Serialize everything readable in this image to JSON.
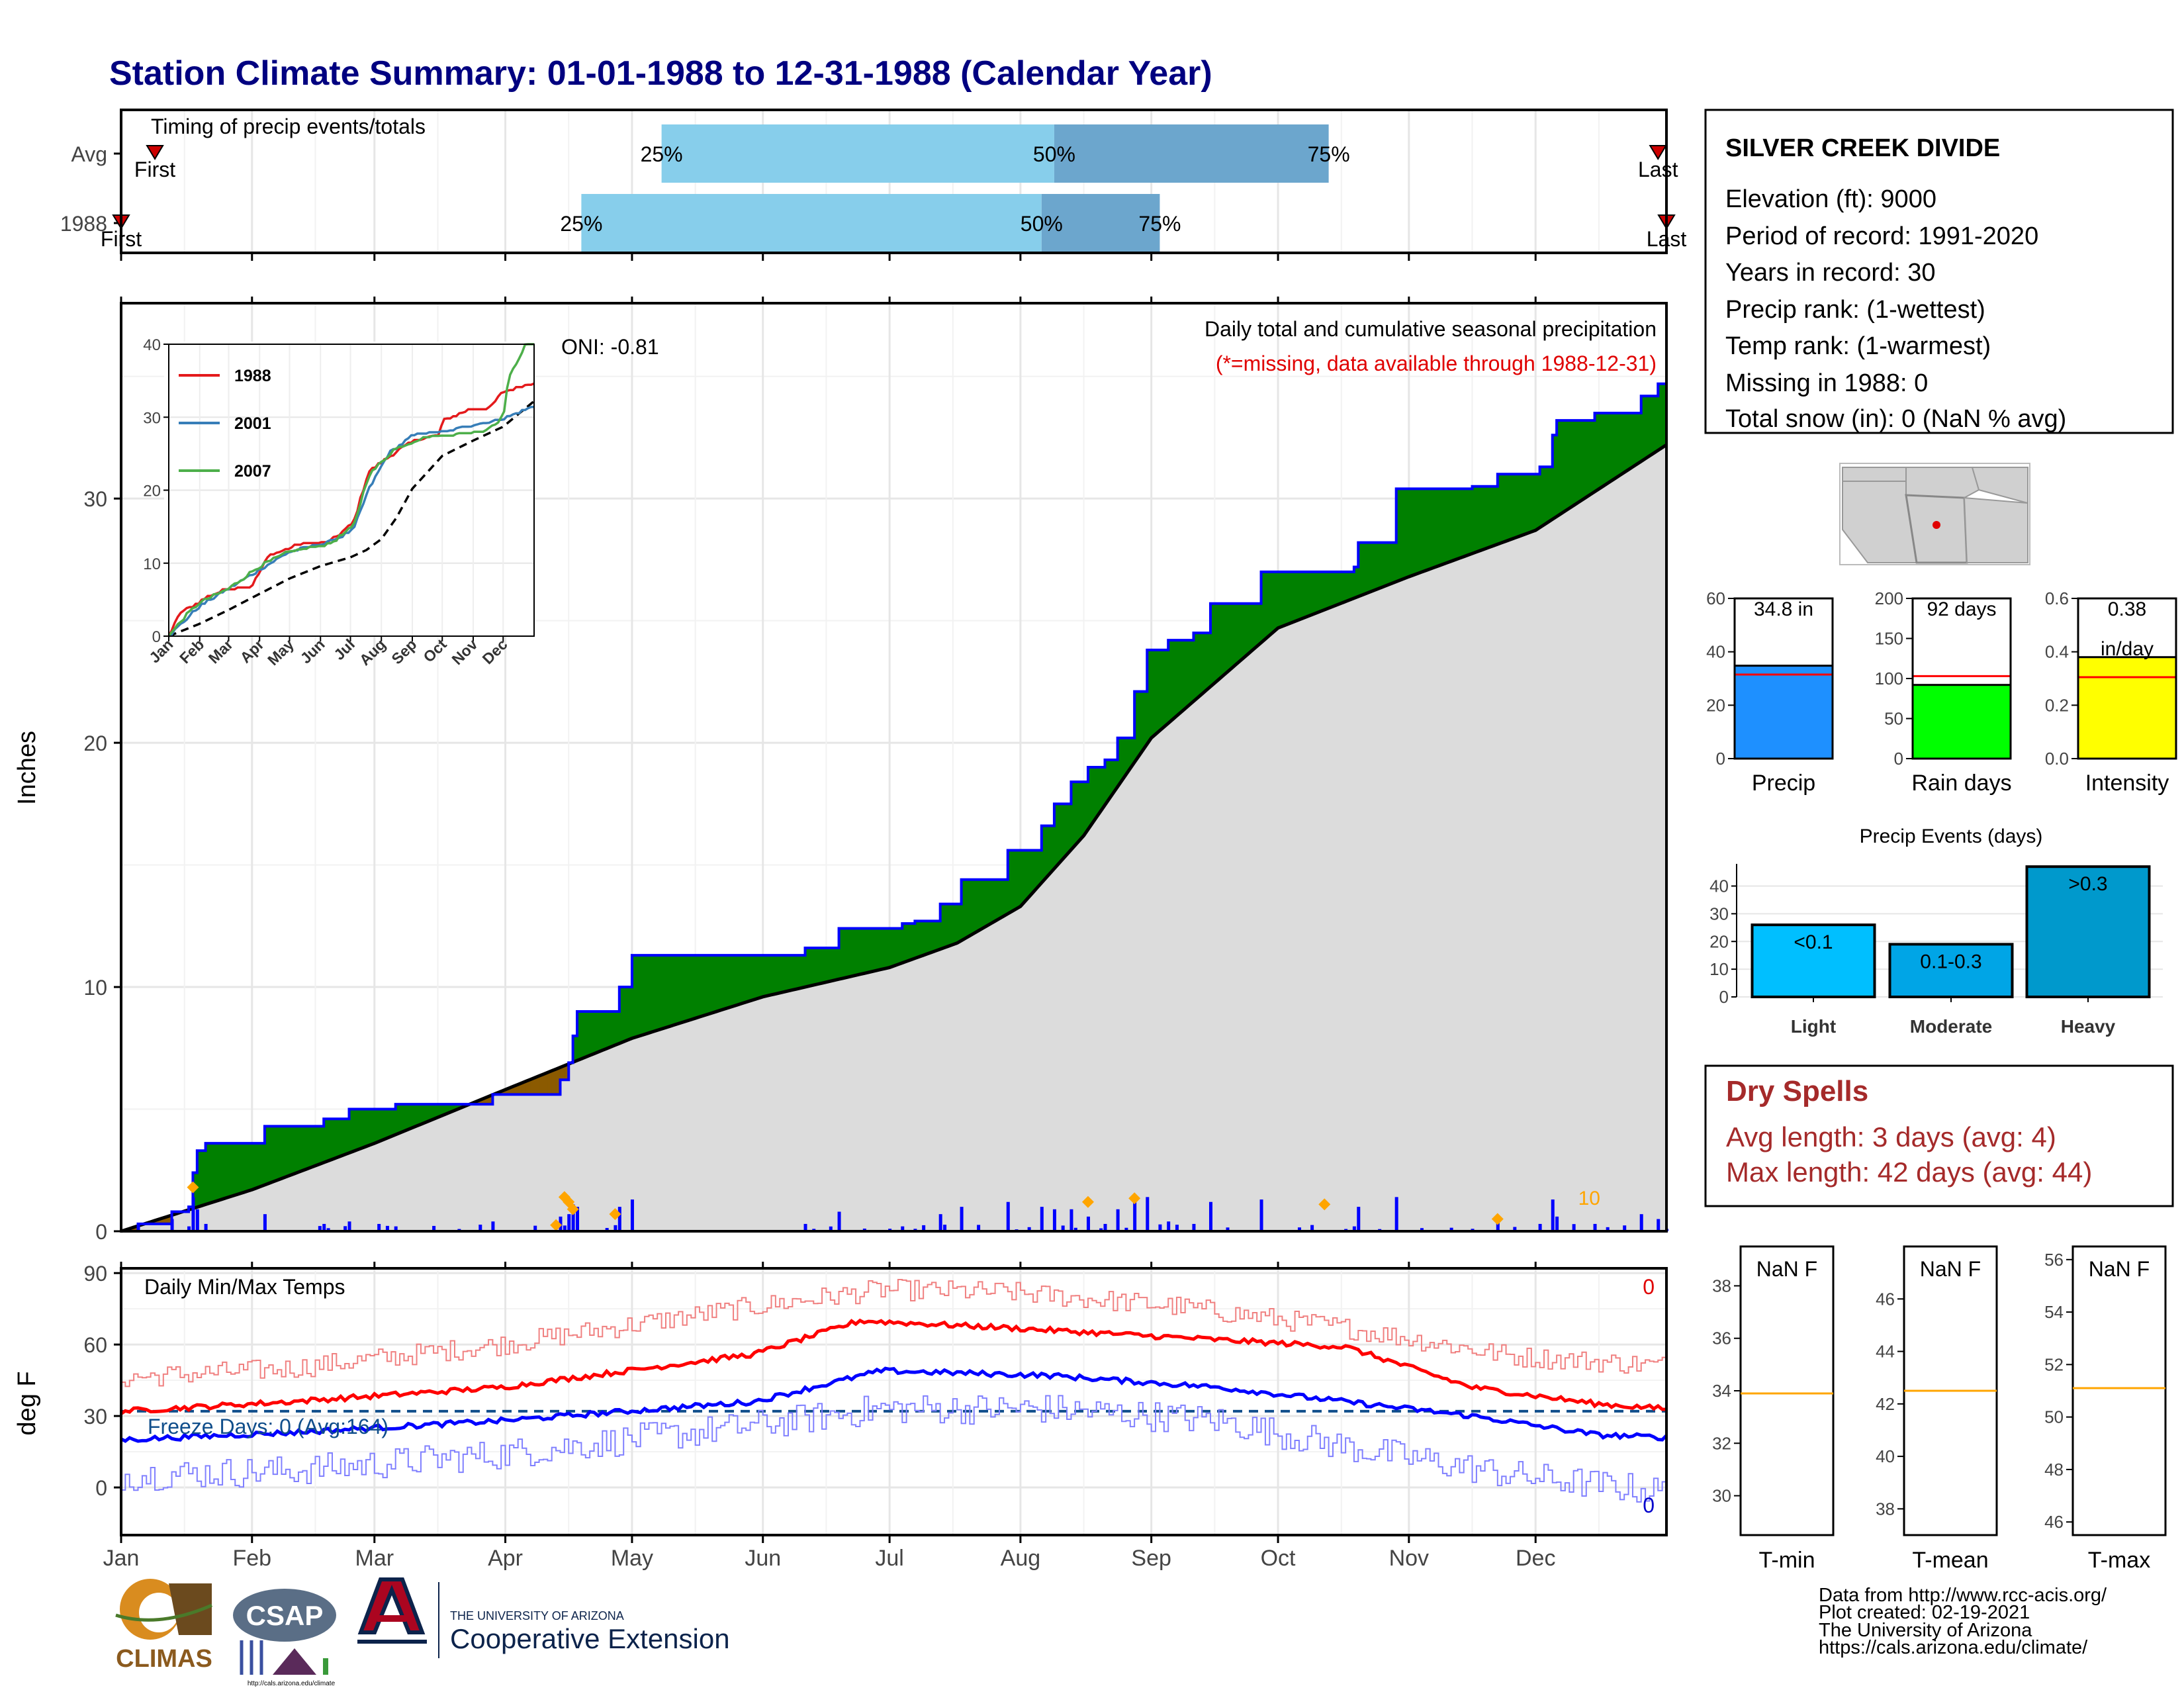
{
  "title": "Station Climate Summary: 01-01-1988 to 12-31-1988 (Calendar Year)",
  "months": [
    "Jan",
    "Feb",
    "Mar",
    "Apr",
    "May",
    "Jun",
    "Jul",
    "Aug",
    "Sep",
    "Oct",
    "Nov",
    "Dec"
  ],
  "timing": {
    "label": "Timing of precip events/totals",
    "rows": [
      {
        "name": "Avg",
        "first_label": "First",
        "last_label": "Last",
        "first_day": 8,
        "last_day": 364,
        "q25": 128,
        "q50": 221,
        "q75": 286,
        "q25_label": "25%",
        "q50_label": "50%",
        "q75_label": "75%"
      },
      {
        "name": "1988",
        "first_label": "First",
        "last_label": "Last",
        "first_day": 0,
        "last_day": 366,
        "q25": 109,
        "q50": 218,
        "q75": 246,
        "q25_label": "25%",
        "q50_label": "50%",
        "q75_label": "75%"
      }
    ],
    "colors": {
      "q25_q50": "#87CEEB",
      "q50_q75": "#6CA6CD",
      "marker": "#CC0000"
    }
  },
  "precip": {
    "ylabel": "Inches",
    "ylim": [
      0,
      38
    ],
    "yticks": [
      0,
      10,
      20,
      30
    ],
    "title": "Daily total and cumulative seasonal precipitation",
    "missing_note": "(*=missing, data available through 1988-12-31)",
    "oni": "ONI: -0.81",
    "orange_count": "10",
    "colors": {
      "above": "#008000",
      "below": "#8B5A00",
      "normal": "#DCDCDC",
      "line": "#0000FF",
      "bars": "#0000FF",
      "markers": "#FFA500"
    }
  },
  "inset": {
    "ylim": [
      0,
      40
    ],
    "yticks": [
      0,
      10,
      20,
      30,
      40
    ],
    "series": [
      {
        "name": "1988",
        "color": "#E41A1C"
      },
      {
        "name": "2001",
        "color": "#377EB8"
      },
      {
        "name": "2007",
        "color": "#4DAF4A"
      }
    ]
  },
  "temps": {
    "ylabel": "deg F",
    "label": "Daily Min/Max Temps",
    "ylim": [
      -20,
      92
    ],
    "yticks": [
      0,
      30,
      60,
      90
    ],
    "freeze_label": "Freeze Days: 0 (Avg:164)",
    "max_count": "0",
    "min_count": "0",
    "colors": {
      "max_avg": "#FF0000",
      "min_avg": "#0000FF",
      "max_daily": "#F08080",
      "min_daily": "#8080FF",
      "freeze": "#104E8B"
    }
  },
  "station": {
    "name": "SILVER CREEK DIVIDE",
    "lines": [
      "Elevation (ft): 9000",
      "Period of record: 1991-2020",
      "Years in record: 30",
      "Precip rank:  (1-wettest)",
      "Temp rank:  (1-warmest)",
      "Missing in 1988: 0",
      "Total snow (in): 0 (NaN % avg)"
    ]
  },
  "summary_bars": [
    {
      "label": "Precip",
      "value_label": "34.8 in",
      "value": 34.8,
      "avg": 31.5,
      "ylim": [
        0,
        60
      ],
      "yticks": [
        0,
        20,
        40,
        60
      ],
      "color": "#1E90FF"
    },
    {
      "label": "Rain days",
      "value_label": "92 days",
      "value": 92,
      "avg": 103,
      "ylim": [
        0,
        200
      ],
      "yticks": [
        0,
        50,
        100,
        150,
        200
      ],
      "color": "#00FF00"
    },
    {
      "label": "Intensity",
      "value_label": "0.38",
      "value_label2": "in/day",
      "value": 0.38,
      "avg": 0.305,
      "ylim": [
        0,
        0.6
      ],
      "yticks": [
        0.0,
        0.2,
        0.4,
        0.6
      ],
      "color": "#FFFF00"
    }
  ],
  "precip_events": {
    "title": "Precip Events (days)",
    "ylim": [
      0,
      48
    ],
    "yticks": [
      0,
      10,
      20,
      30,
      40
    ],
    "categories": [
      {
        "label": "Light",
        "range": "<0.1",
        "value": 26,
        "color": "#00BFFF"
      },
      {
        "label": "Moderate",
        "range": "0.1-0.3",
        "value": 19,
        "color": "#00A5E6"
      },
      {
        "label": "Heavy",
        "range": ">0.3",
        "value": 47,
        "color": "#0099CC"
      }
    ]
  },
  "dry_spells": {
    "title": "Dry Spells",
    "avg_line": "Avg length: 3 days (avg: 4)",
    "max_line": "Max length: 42 days (avg: 44)",
    "color": "#A52A2A"
  },
  "temp_boxes": [
    {
      "label": "T-min",
      "value_label": "NaN F",
      "avg": 33.9,
      "ylim": [
        28.5,
        39.5
      ],
      "yticks": [
        30,
        32,
        34,
        36,
        38
      ]
    },
    {
      "label": "T-mean",
      "value_label": "NaN F",
      "avg": 42.5,
      "ylim": [
        37.0,
        48.0
      ],
      "yticks": [
        38,
        40,
        42,
        44,
        46
      ]
    },
    {
      "label": "T-max",
      "value_label": "NaN F",
      "avg": 51.1,
      "ylim": [
        45.5,
        56.5
      ],
      "yticks": [
        46,
        48,
        50,
        52,
        54,
        56
      ]
    }
  ],
  "footer": {
    "lines": [
      "Data from http://www.rcc-acis.org/",
      "Plot created: 02-19-2021",
      "The University of Arizona",
      "https://cals.arizona.edu/climate/"
    ],
    "climas": "CLIMAS",
    "csap": "CSAP",
    "csap_url": "http://cals.arizona.edu/climate",
    "ua_top": "THE UNIVERSITY OF ARIZONA",
    "ua_bottom": "Cooperative Extension"
  }
}
